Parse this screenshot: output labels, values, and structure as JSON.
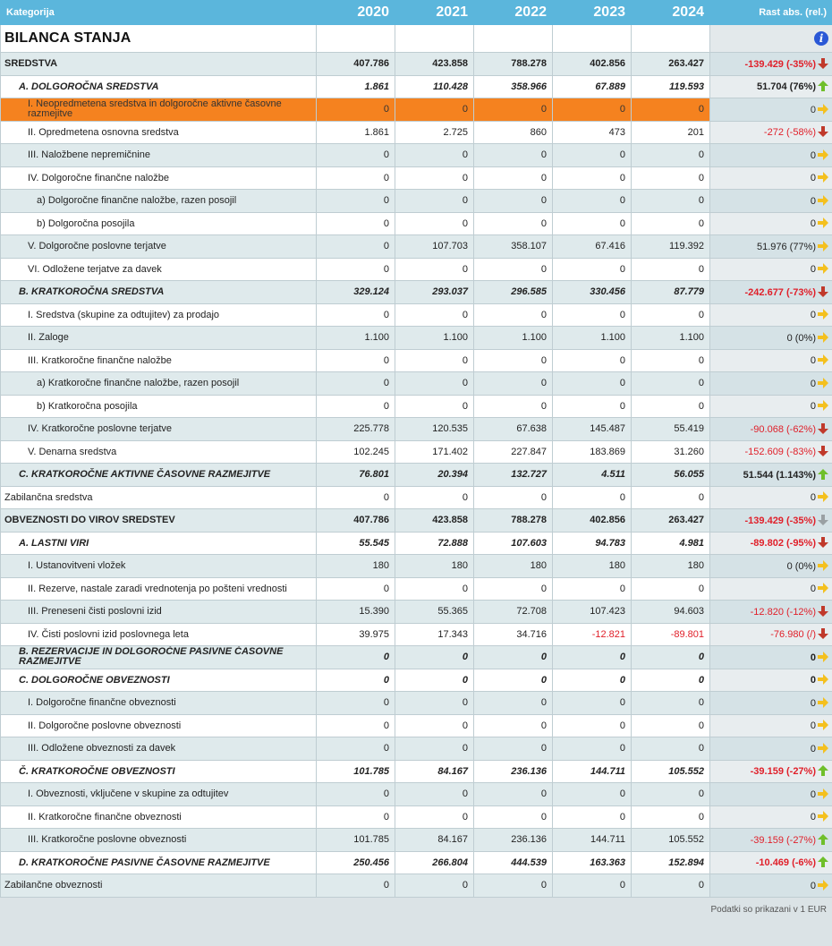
{
  "header": {
    "category_label": "Kategorija",
    "years": [
      "2020",
      "2021",
      "2022",
      "2023",
      "2024"
    ],
    "growth_label": "Rast abs. (rel.)"
  },
  "title_row": {
    "title": "BILANCA STANJA",
    "info_icon": "info-icon"
  },
  "rows": [
    {
      "label": "SREDSTVA",
      "style": "bold",
      "level": 0,
      "values": [
        "407.786",
        "423.858",
        "788.278",
        "402.856",
        "263.427"
      ],
      "rel": "-139.429 (-35%)",
      "trend": "down",
      "rel_neg": true
    },
    {
      "label": "A. DOLGOROČNA SREDSTVA",
      "style": "italic-bold",
      "level": 1,
      "values": [
        "1.861",
        "110.428",
        "358.966",
        "67.889",
        "119.593"
      ],
      "rel": "51.704 (76%)",
      "trend": "up",
      "rel_neg": false
    },
    {
      "label": "I. Neopredmetena sredstva in dolgoročne aktivne časovne razmejitve",
      "style": "normal",
      "level": 2,
      "values": [
        "0",
        "0",
        "0",
        "0",
        "0"
      ],
      "rel": "0",
      "trend": "right",
      "rel_neg": false,
      "highlight": true
    },
    {
      "label": "II. Opredmetena osnovna sredstva",
      "style": "normal",
      "level": 2,
      "values": [
        "1.861",
        "2.725",
        "860",
        "473",
        "201"
      ],
      "rel": "-272 (-58%)",
      "trend": "down",
      "rel_neg": true
    },
    {
      "label": "III. Naložbene nepremičnine",
      "style": "normal",
      "level": 2,
      "values": [
        "0",
        "0",
        "0",
        "0",
        "0"
      ],
      "rel": "0",
      "trend": "right",
      "rel_neg": false
    },
    {
      "label": "IV. Dolgoročne finančne naložbe",
      "style": "normal",
      "level": 2,
      "values": [
        "0",
        "0",
        "0",
        "0",
        "0"
      ],
      "rel": "0",
      "trend": "right",
      "rel_neg": false
    },
    {
      "label": "a) Dolgoročne finančne naložbe, razen posojil",
      "style": "normal",
      "level": 3,
      "values": [
        "0",
        "0",
        "0",
        "0",
        "0"
      ],
      "rel": "0",
      "trend": "right",
      "rel_neg": false
    },
    {
      "label": "b) Dolgoročna posojila",
      "style": "normal",
      "level": 3,
      "values": [
        "0",
        "0",
        "0",
        "0",
        "0"
      ],
      "rel": "0",
      "trend": "right",
      "rel_neg": false
    },
    {
      "label": "V. Dolgoročne poslovne terjatve",
      "style": "normal",
      "level": 2,
      "values": [
        "0",
        "107.703",
        "358.107",
        "67.416",
        "119.392"
      ],
      "rel": "51.976 (77%)",
      "trend": "right",
      "rel_neg": false
    },
    {
      "label": "VI. Odložene terjatve za davek",
      "style": "normal",
      "level": 2,
      "values": [
        "0",
        "0",
        "0",
        "0",
        "0"
      ],
      "rel": "0",
      "trend": "right",
      "rel_neg": false
    },
    {
      "label": "B. KRATKOROČNA SREDSTVA",
      "style": "italic-bold",
      "level": 1,
      "values": [
        "329.124",
        "293.037",
        "296.585",
        "330.456",
        "87.779"
      ],
      "rel": "-242.677 (-73%)",
      "trend": "down",
      "rel_neg": true
    },
    {
      "label": "I. Sredstva (skupine za odtujitev) za prodajo",
      "style": "normal",
      "level": 2,
      "values": [
        "0",
        "0",
        "0",
        "0",
        "0"
      ],
      "rel": "0",
      "trend": "right",
      "rel_neg": false
    },
    {
      "label": "II. Zaloge",
      "style": "normal",
      "level": 2,
      "values": [
        "1.100",
        "1.100",
        "1.100",
        "1.100",
        "1.100"
      ],
      "rel": "0 (0%)",
      "trend": "right",
      "rel_neg": false
    },
    {
      "label": "III. Kratkoročne finančne naložbe",
      "style": "normal",
      "level": 2,
      "values": [
        "0",
        "0",
        "0",
        "0",
        "0"
      ],
      "rel": "0",
      "trend": "right",
      "rel_neg": false
    },
    {
      "label": "a) Kratkoročne finančne naložbe, razen posojil",
      "style": "normal",
      "level": 3,
      "values": [
        "0",
        "0",
        "0",
        "0",
        "0"
      ],
      "rel": "0",
      "trend": "right",
      "rel_neg": false
    },
    {
      "label": "b) Kratkoročna posojila",
      "style": "normal",
      "level": 3,
      "values": [
        "0",
        "0",
        "0",
        "0",
        "0"
      ],
      "rel": "0",
      "trend": "right",
      "rel_neg": false
    },
    {
      "label": "IV. Kratkoročne poslovne terjatve",
      "style": "normal",
      "level": 2,
      "values": [
        "225.778",
        "120.535",
        "67.638",
        "145.487",
        "55.419"
      ],
      "rel": "-90.068 (-62%)",
      "trend": "down",
      "rel_neg": true
    },
    {
      "label": "V. Denarna sredstva",
      "style": "normal",
      "level": 2,
      "values": [
        "102.245",
        "171.402",
        "227.847",
        "183.869",
        "31.260"
      ],
      "rel": "-152.609 (-83%)",
      "trend": "down",
      "rel_neg": true
    },
    {
      "label": "C. KRATKOROČNE AKTIVNE ČASOVNE RAZMEJITVE",
      "style": "italic-bold",
      "level": 1,
      "values": [
        "76.801",
        "20.394",
        "132.727",
        "4.511",
        "56.055"
      ],
      "rel": "51.544 (1.143%)",
      "trend": "up",
      "rel_neg": false
    },
    {
      "label": "Zabilančna sredstva",
      "style": "normal",
      "level": 0,
      "values": [
        "0",
        "0",
        "0",
        "0",
        "0"
      ],
      "rel": "0",
      "trend": "right",
      "rel_neg": false
    },
    {
      "label": "OBVEZNOSTI DO VIROV SREDSTEV",
      "style": "bold",
      "level": 0,
      "values": [
        "407.786",
        "423.858",
        "788.278",
        "402.856",
        "263.427"
      ],
      "rel": "-139.429 (-35%)",
      "trend": "gray",
      "rel_neg": true
    },
    {
      "label": "A. LASTNI VIRI",
      "style": "italic-bold",
      "level": 1,
      "values": [
        "55.545",
        "72.888",
        "107.603",
        "94.783",
        "4.981"
      ],
      "rel": "-89.802 (-95%)",
      "trend": "down",
      "rel_neg": true
    },
    {
      "label": "I. Ustanovitveni vložek",
      "style": "normal",
      "level": 2,
      "values": [
        "180",
        "180",
        "180",
        "180",
        "180"
      ],
      "rel": "0 (0%)",
      "trend": "right",
      "rel_neg": false
    },
    {
      "label": "II. Rezerve, nastale zaradi vrednotenja po pošteni vrednosti",
      "style": "normal",
      "level": 2,
      "values": [
        "0",
        "0",
        "0",
        "0",
        "0"
      ],
      "rel": "0",
      "trend": "right",
      "rel_neg": false
    },
    {
      "label": "III. Preneseni čisti poslovni izid",
      "style": "normal",
      "level": 2,
      "values": [
        "15.390",
        "55.365",
        "72.708",
        "107.423",
        "94.603"
      ],
      "rel": "-12.820 (-12%)",
      "trend": "down",
      "rel_neg": true
    },
    {
      "label": "IV. Čisti poslovni izid poslovnega leta",
      "style": "normal",
      "level": 2,
      "values": [
        "39.975",
        "17.343",
        "34.716",
        "-12.821",
        "-89.801"
      ],
      "rel": "-76.980 (/)",
      "trend": "down",
      "rel_neg": true,
      "neg_cols": [
        3,
        4
      ]
    },
    {
      "label": "B. REZERVACIJE IN DOLGOROČNE PASIVNE ČASOVNE RAZMEJITVE",
      "style": "italic-bold",
      "level": 1,
      "values": [
        "0",
        "0",
        "0",
        "0",
        "0"
      ],
      "rel": "0",
      "trend": "right",
      "rel_neg": false,
      "twoline": true
    },
    {
      "label": "C. DOLGOROČNE OBVEZNOSTI",
      "style": "italic-bold",
      "level": 1,
      "values": [
        "0",
        "0",
        "0",
        "0",
        "0"
      ],
      "rel": "0",
      "trend": "right",
      "rel_neg": false
    },
    {
      "label": "I. Dolgoročne finančne obveznosti",
      "style": "normal",
      "level": 2,
      "values": [
        "0",
        "0",
        "0",
        "0",
        "0"
      ],
      "rel": "0",
      "trend": "right",
      "rel_neg": false
    },
    {
      "label": "II. Dolgoročne poslovne obveznosti",
      "style": "normal",
      "level": 2,
      "values": [
        "0",
        "0",
        "0",
        "0",
        "0"
      ],
      "rel": "0",
      "trend": "right",
      "rel_neg": false
    },
    {
      "label": "III. Odložene obveznosti za davek",
      "style": "normal",
      "level": 2,
      "values": [
        "0",
        "0",
        "0",
        "0",
        "0"
      ],
      "rel": "0",
      "trend": "right",
      "rel_neg": false
    },
    {
      "label": "Č. KRATKOROČNE OBVEZNOSTI",
      "style": "italic-bold",
      "level": 1,
      "values": [
        "101.785",
        "84.167",
        "236.136",
        "144.711",
        "105.552"
      ],
      "rel": "-39.159 (-27%)",
      "trend": "up",
      "rel_neg": true
    },
    {
      "label": "I. Obveznosti, vključene v skupine za odtujitev",
      "style": "normal",
      "level": 2,
      "values": [
        "0",
        "0",
        "0",
        "0",
        "0"
      ],
      "rel": "0",
      "trend": "right",
      "rel_neg": false
    },
    {
      "label": "II. Kratkoročne finančne obveznosti",
      "style": "normal",
      "level": 2,
      "values": [
        "0",
        "0",
        "0",
        "0",
        "0"
      ],
      "rel": "0",
      "trend": "right",
      "rel_neg": false
    },
    {
      "label": "III. Kratkoročne poslovne obveznosti",
      "style": "normal",
      "level": 2,
      "values": [
        "101.785",
        "84.167",
        "236.136",
        "144.711",
        "105.552"
      ],
      "rel": "-39.159 (-27%)",
      "trend": "up",
      "rel_neg": true
    },
    {
      "label": "D. KRATKOROČNE PASIVNE ČASOVNE RAZMEJITVE",
      "style": "italic-bold",
      "level": 1,
      "values": [
        "250.456",
        "266.804",
        "444.539",
        "163.363",
        "152.894"
      ],
      "rel": "-10.469 (-6%)",
      "trend": "up",
      "rel_neg": true
    },
    {
      "label": "Zabilančne obveznosti",
      "style": "normal",
      "level": 0,
      "values": [
        "0",
        "0",
        "0",
        "0",
        "0"
      ],
      "rel": "0",
      "trend": "right",
      "rel_neg": false
    }
  ],
  "footer": {
    "note": "Podatki so prikazani v 1 EUR"
  },
  "colors": {
    "header_bg": "#5bb6dc",
    "highlight": "#f5821f",
    "negative": "#e0202a",
    "arrow_down": "#c0392b",
    "arrow_up": "#6fbf2a",
    "arrow_right": "#f4c01e"
  }
}
